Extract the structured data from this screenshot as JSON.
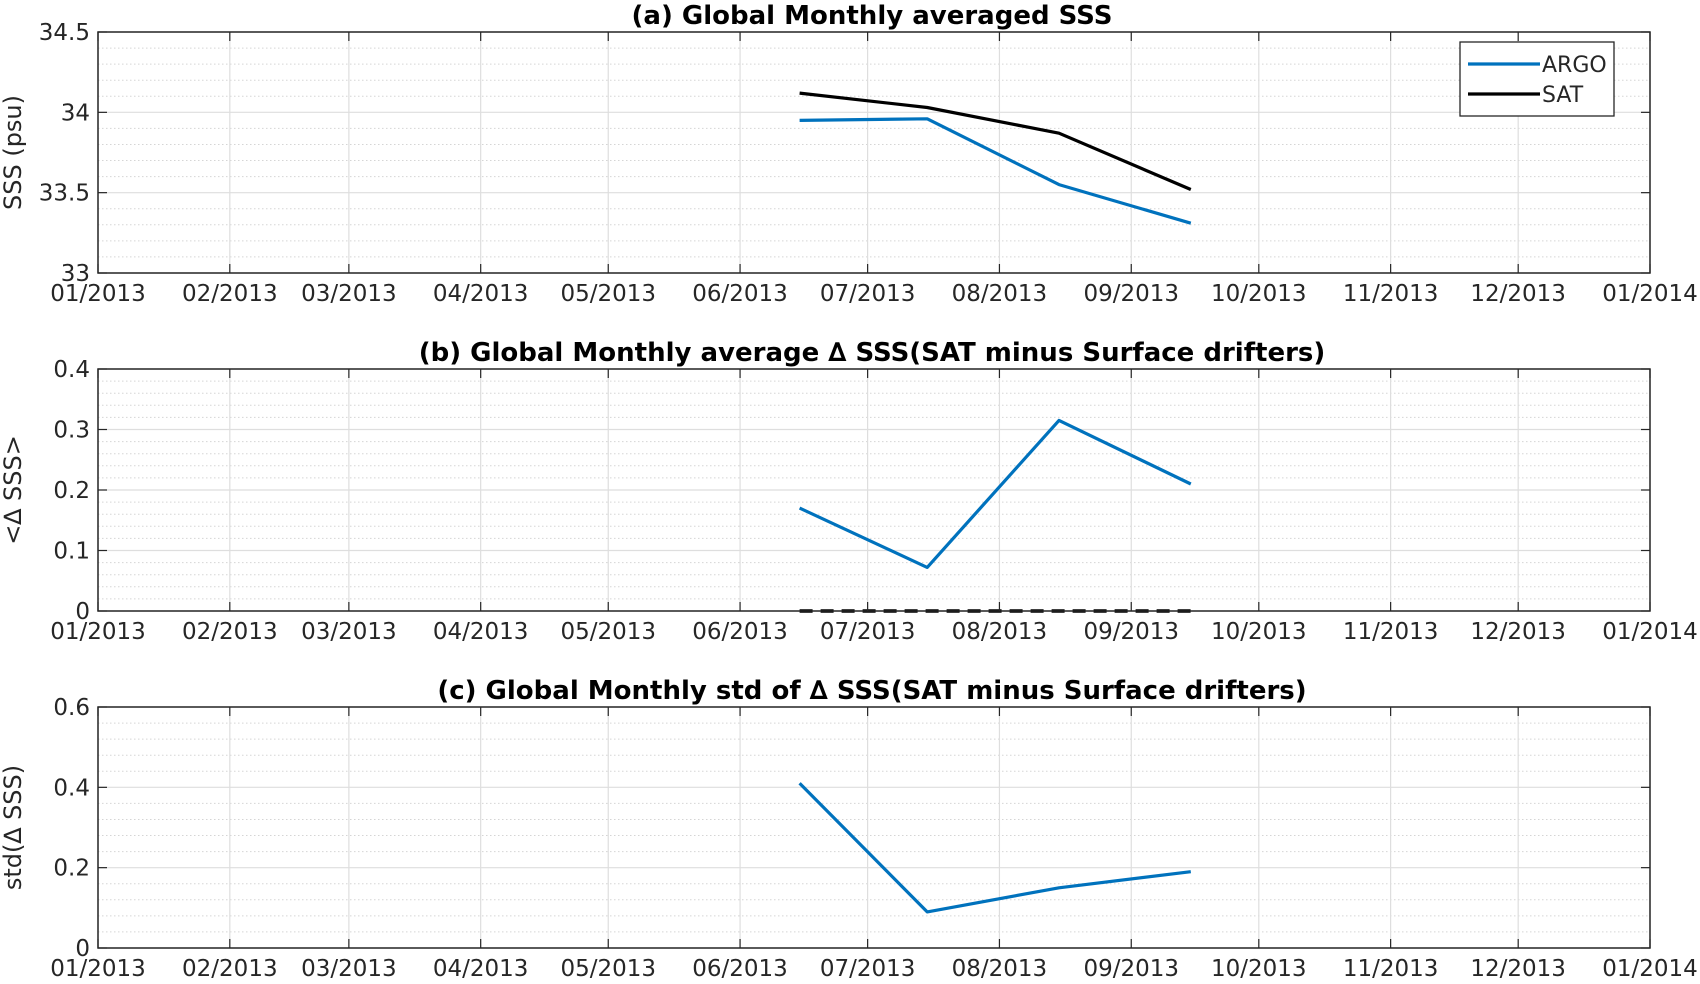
{
  "chart_data": [
    {
      "type": "line",
      "title": "(a) Global Monthly averaged SSS",
      "ylabel": "SSS (psu)",
      "xlabel": "",
      "xlim": [
        "2013-01-01",
        "2014-01-01"
      ],
      "ylim": [
        33,
        34.5
      ],
      "x_ticks": [
        "01/2013",
        "02/2013",
        "03/2013",
        "04/2013",
        "05/2013",
        "06/2013",
        "07/2013",
        "08/2013",
        "09/2013",
        "10/2013",
        "11/2013",
        "12/2013",
        "01/2014"
      ],
      "y_ticks": [
        "33",
        "33.5",
        "34",
        "34.5"
      ],
      "grid": "major and minor",
      "legend": "top-right",
      "series": [
        {
          "name": "ARGO",
          "color": "#0072BD",
          "style": "solid",
          "x": [
            "2013-06-15",
            "2013-07-15",
            "2013-08-15",
            "2013-09-15"
          ],
          "values": [
            33.95,
            33.96,
            33.55,
            33.31
          ]
        },
        {
          "name": "SAT",
          "color": "#000000",
          "style": "solid",
          "x": [
            "2013-06-15",
            "2013-07-15",
            "2013-08-15",
            "2013-09-15"
          ],
          "values": [
            34.12,
            34.03,
            33.87,
            33.52
          ]
        }
      ]
    },
    {
      "type": "line",
      "title": "(b) Global Monthly average ∆ SSS(SAT minus Surface drifters)",
      "ylabel": "<∆ SSS>",
      "xlabel": "",
      "xlim": [
        "2013-01-01",
        "2014-01-01"
      ],
      "ylim": [
        0,
        0.4
      ],
      "x_ticks": [
        "01/2013",
        "02/2013",
        "03/2013",
        "04/2013",
        "05/2013",
        "06/2013",
        "07/2013",
        "08/2013",
        "09/2013",
        "10/2013",
        "11/2013",
        "12/2013",
        "01/2014"
      ],
      "y_ticks": [
        "0",
        "0.1",
        "0.2",
        "0.3",
        "0.4"
      ],
      "grid": "major and minor",
      "series": [
        {
          "color": "#0072BD",
          "style": "solid",
          "x": [
            "2013-06-15",
            "2013-07-15",
            "2013-08-15",
            "2013-09-15"
          ],
          "values": [
            0.17,
            0.072,
            0.315,
            0.21
          ]
        },
        {
          "color": "#000000",
          "style": "dashed",
          "x": [
            "2013-06-15",
            "2013-07-15",
            "2013-08-15",
            "2013-09-15"
          ],
          "values": [
            0,
            0,
            0,
            0
          ]
        }
      ]
    },
    {
      "type": "line",
      "title": "(c) Global Monthly std of ∆ SSS(SAT minus Surface drifters)",
      "ylabel": "std(∆ SSS)",
      "xlabel": "",
      "xlim": [
        "2013-01-01",
        "2014-01-01"
      ],
      "ylim": [
        0,
        0.6
      ],
      "x_ticks": [
        "01/2013",
        "02/2013",
        "03/2013",
        "04/2013",
        "05/2013",
        "06/2013",
        "07/2013",
        "08/2013",
        "09/2013",
        "10/2013",
        "11/2013",
        "12/2013",
        "01/2014"
      ],
      "y_ticks": [
        "0",
        "0.2",
        "0.4",
        "0.6"
      ],
      "grid": "major and minor",
      "series": [
        {
          "color": "#0072BD",
          "style": "solid",
          "x": [
            "2013-06-15",
            "2013-07-15",
            "2013-08-15",
            "2013-09-15"
          ],
          "values": [
            0.41,
            0.09,
            0.15,
            0.19
          ]
        }
      ]
    }
  ]
}
